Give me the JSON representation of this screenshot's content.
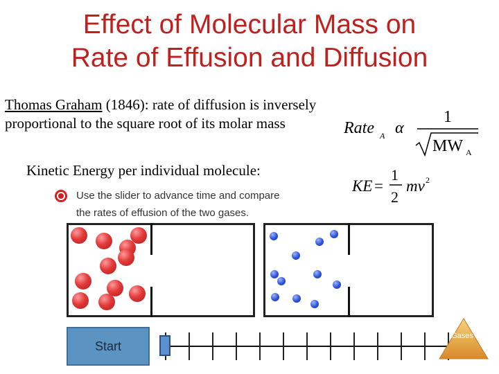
{
  "slide": {
    "title_line1": "Effect of Molecular Mass on",
    "title_line2": "Rate of Effusion and Diffusion",
    "graham_name": "Thomas Graham",
    "graham_rest": " (1846): rate of diffusion is inversely proportional to the square root of its molar mass",
    "ke_text": "Kinetic Energy per individual molecule:"
  },
  "formula_rate": {
    "lhs": "Rate",
    "lhs_sub": "A",
    "symbol": "α",
    "numerator": "1",
    "denominator": "MW",
    "den_sub": "A"
  },
  "formula_ke": {
    "lhs": "KE",
    "equals": "=",
    "num": "1",
    "den": "2",
    "rhs": "mv",
    "exp": "2"
  },
  "simulation": {
    "instruction_line1": "Use the slider to advance time and compare",
    "instruction_line2": "the rates of effusion of the two gases.",
    "start_label": "Start",
    "heavy_gas_color": "#e23a3a",
    "light_gas_color": "#2f52d8"
  },
  "nav": {
    "gases_label": "Gases",
    "color": "#e8a63a"
  }
}
